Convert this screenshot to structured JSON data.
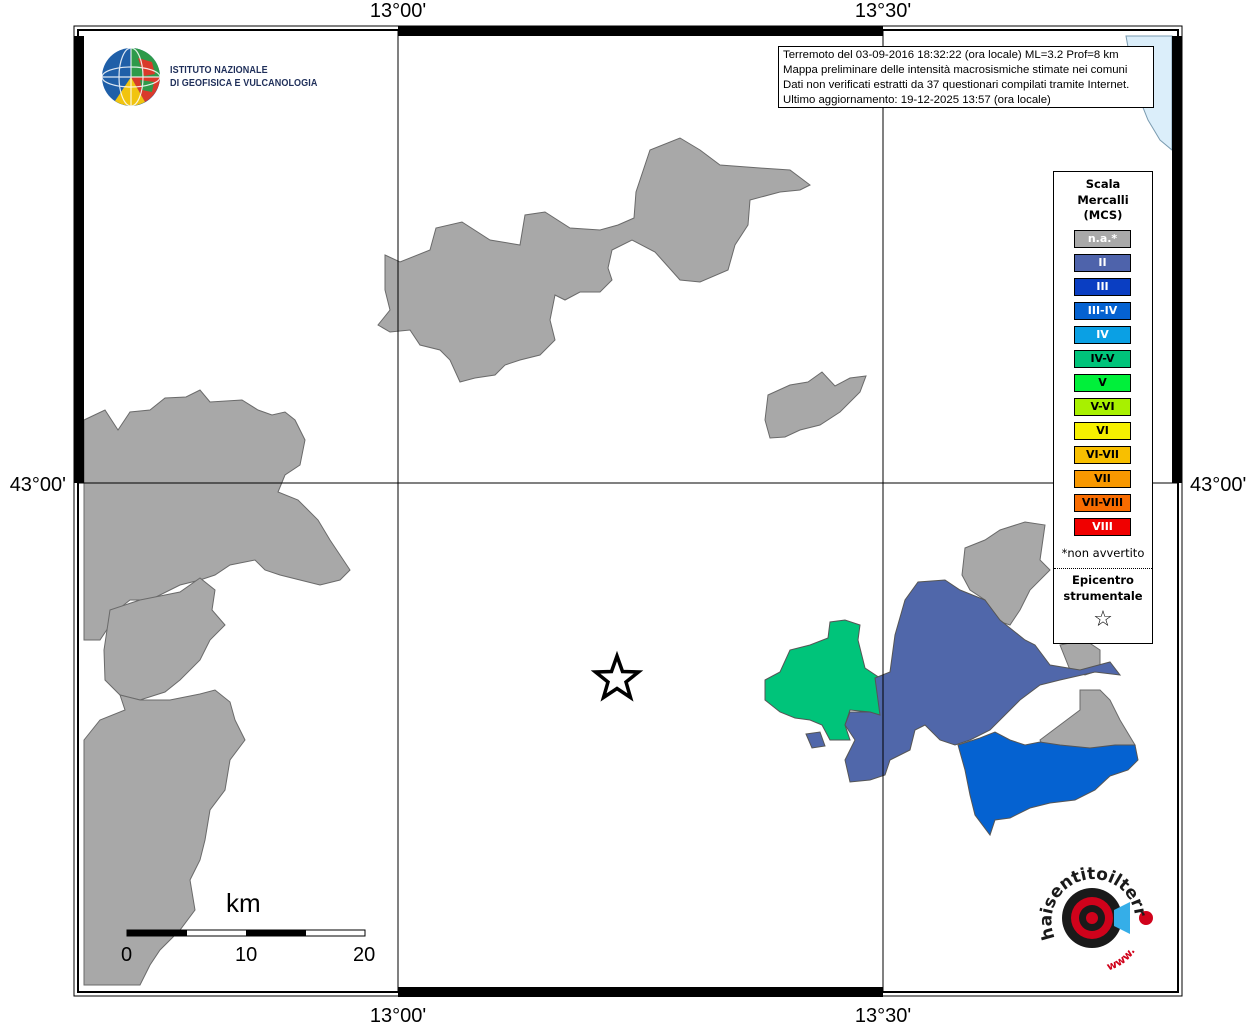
{
  "map": {
    "grid_labels": {
      "lon_left": "13°00'",
      "lon_right": "13°30'",
      "lat_middle": "43°00'"
    },
    "colors": {
      "unassigned_gray": "#a8a8a8",
      "water": "#dbeefa",
      "intensity_II": "#5067aa",
      "intensity_III_IV": "#0562d1",
      "intensity_IV_V": "#00c47a"
    }
  },
  "institute": {
    "name_line1": "ISTITUTO NAZIONALE",
    "name_line2": "DI GEOFISICA E VULCANOLOGIA"
  },
  "info": {
    "line1": "Terremoto del 03-09-2016 18:32:22 (ora locale) ML=3.2 Prof=8 km",
    "line2": "Mappa preliminare delle intensità macrosismiche stimate nei comuni",
    "line3": "Dati non verificati estratti da 37 questionari compilati tramite Internet.",
    "line4": "Ultimo aggiornamento: 19-12-2025 13:57 (ora locale)"
  },
  "legend": {
    "title1": "Scala",
    "title2": "Mercalli",
    "title3": "(MCS)",
    "items": [
      {
        "label": "n.a.*",
        "color": "#a9a9a9",
        "text_color": "#ffffff"
      },
      {
        "label": "II",
        "color": "#4e63ab",
        "text_color": "#ffffff"
      },
      {
        "label": "III",
        "color": "#0a3ec2",
        "text_color": "#ffffff"
      },
      {
        "label": "III-IV",
        "color": "#0562d1",
        "text_color": "#ffffff"
      },
      {
        "label": "IV",
        "color": "#0aa0e4",
        "text_color": "#ffffff"
      },
      {
        "label": "IV-V",
        "color": "#00c47a",
        "text_color": "#000000"
      },
      {
        "label": "V",
        "color": "#00f03a",
        "text_color": "#000000"
      },
      {
        "label": "V-VI",
        "color": "#a8f000",
        "text_color": "#000000"
      },
      {
        "label": "VI",
        "color": "#f6f000",
        "text_color": "#000000"
      },
      {
        "label": "VI-VII",
        "color": "#f8bf00",
        "text_color": "#000000"
      },
      {
        "label": "VII",
        "color": "#f89800",
        "text_color": "#000000"
      },
      {
        "label": "VII-VIII",
        "color": "#f86c00",
        "text_color": "#000000"
      },
      {
        "label": "VIII",
        "color": "#f00000",
        "text_color": "#ffffff"
      }
    ],
    "note": "*non avvertito",
    "epicenter_line1": "Epicentro",
    "epicenter_line2": "strumentale",
    "epicenter_symbol": "☆"
  },
  "scale_bar": {
    "unit": "km",
    "ticks": [
      "0",
      "10",
      "20"
    ]
  },
  "site_logo": {
    "text": "haisentitoilterremoto.it",
    "prefix": "www."
  }
}
